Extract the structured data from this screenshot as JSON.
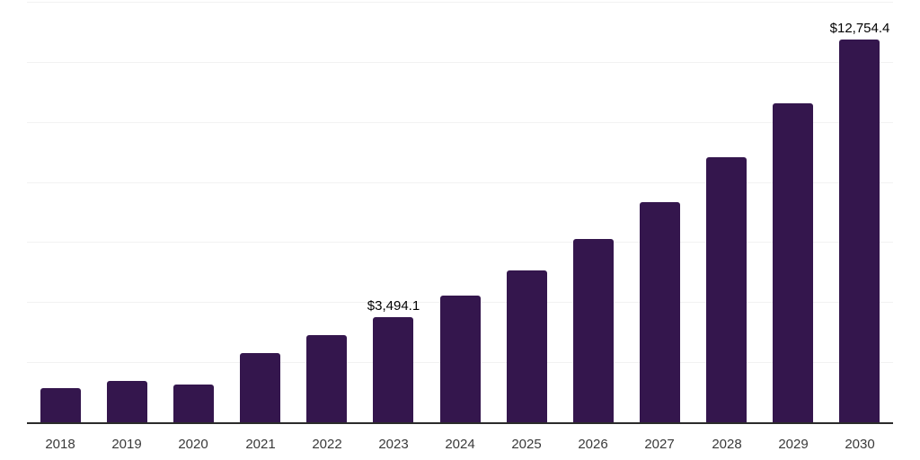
{
  "chart_data": {
    "type": "bar",
    "title": "",
    "xlabel": "",
    "ylabel": "",
    "categories": [
      "2018",
      "2019",
      "2020",
      "2021",
      "2022",
      "2023",
      "2024",
      "2025",
      "2026",
      "2027",
      "2028",
      "2029",
      "2030"
    ],
    "values": [
      1135,
      1380,
      1260,
      2290,
      2900,
      3494.1,
      4210,
      5070,
      6110,
      7340,
      8830,
      10610,
      12754.4
    ],
    "point_labels": [
      "",
      "",
      "",
      "",
      "",
      "$3,494.1",
      "",
      "",
      "",
      "",
      "",
      "",
      "$12,754.4"
    ],
    "ylim": [
      0,
      14000
    ],
    "grid_step": 2000,
    "grid": true,
    "legend": false,
    "colors": {
      "bar": "#34164d",
      "axis_line": "#2b2b2b",
      "gridline": "#f2f2f2",
      "tick_label": "#3a3a3a",
      "data_label": "#000000",
      "background": "#ffffff"
    }
  }
}
